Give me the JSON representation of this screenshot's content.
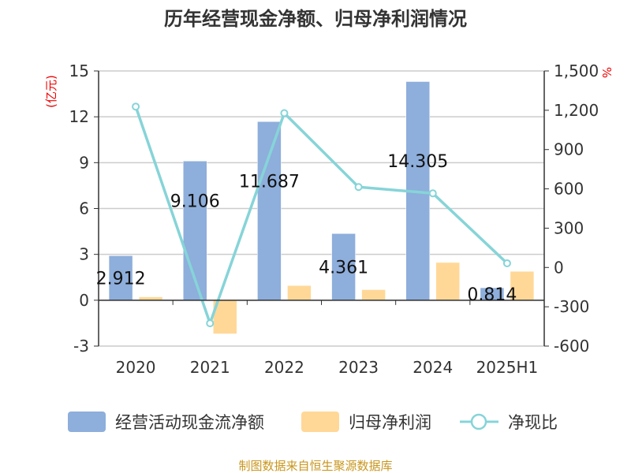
{
  "chart_data": {
    "type": "bar",
    "title": "历年经营现金净额、归母净利润情况",
    "categories": [
      "2020",
      "2021",
      "2022",
      "2023",
      "2024",
      "2025H1"
    ],
    "series": [
      {
        "name": "经营活动现金流净额",
        "type": "bar",
        "axis": "left",
        "color": "#8eaedb",
        "values": [
          2.912,
          9.106,
          11.687,
          4.361,
          14.305,
          0.814
        ],
        "labels": [
          "2.912",
          "9.106",
          "11.687",
          "4.361",
          "14.305",
          "0.814"
        ]
      },
      {
        "name": "归母净利润",
        "type": "bar",
        "axis": "left",
        "color": "#ffd898",
        "values": [
          0.22,
          -2.2,
          0.96,
          0.69,
          2.47,
          1.89
        ]
      },
      {
        "name": "净现比",
        "type": "line",
        "axis": "right",
        "color": "#86d4d8",
        "values": [
          1228,
          -426,
          1178,
          614,
          566,
          32
        ]
      }
    ],
    "yleft": {
      "label": "(亿元)",
      "lim": [
        -3,
        15
      ],
      "ticks": [
        -3,
        0,
        3,
        6,
        9,
        12,
        15
      ],
      "tick_labels": [
        "-3",
        "0",
        "3",
        "6",
        "9",
        "12",
        "15"
      ]
    },
    "yright": {
      "label": "%",
      "lim": [
        -600,
        1500
      ],
      "ticks": [
        -600,
        -300,
        0,
        300,
        600,
        900,
        1200,
        1500
      ],
      "tick_labels": [
        "-600",
        "-300",
        "0",
        "300",
        "600",
        "900",
        "1,200",
        "1,500"
      ]
    },
    "grid": true,
    "legend": "bottom"
  },
  "footer": "制图数据来自恒生聚源数据库"
}
